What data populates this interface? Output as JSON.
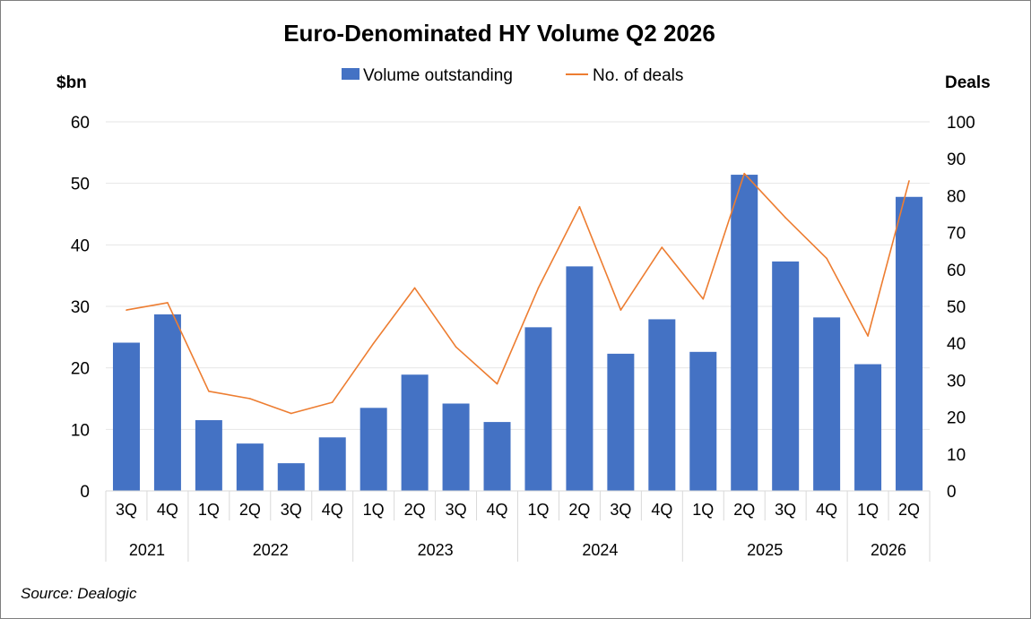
{
  "chart_data": {
    "type": "bar",
    "title": "Euro-Denominated HY Volume Q2 2026",
    "y_left_label": "$bn",
    "y_right_label": "Deals",
    "y_left_range": [
      0,
      60
    ],
    "y_left_ticks": [
      0,
      10,
      20,
      30,
      40,
      50,
      60
    ],
    "y_right_range": [
      0,
      100
    ],
    "y_right_ticks": [
      0,
      10,
      20,
      30,
      40,
      50,
      60,
      70,
      80,
      90,
      100
    ],
    "grid": true,
    "legend_position": "top",
    "categories": [
      "3Q",
      "4Q",
      "1Q",
      "2Q",
      "3Q",
      "4Q",
      "1Q",
      "2Q",
      "3Q",
      "4Q",
      "1Q",
      "2Q",
      "3Q",
      "4Q",
      "1Q",
      "2Q",
      "3Q",
      "4Q",
      "1Q",
      "2Q"
    ],
    "year_groups": [
      {
        "label": "2021",
        "count": 2
      },
      {
        "label": "2022",
        "count": 4
      },
      {
        "label": "2023",
        "count": 4
      },
      {
        "label": "2024",
        "count": 4
      },
      {
        "label": "2025",
        "count": 4
      },
      {
        "label": "2026",
        "count": 2
      }
    ],
    "series": [
      {
        "name": "Volume outstanding",
        "type": "bar",
        "axis": "left",
        "color": "#4472c4",
        "values": [
          24.1,
          28.7,
          11.5,
          7.7,
          4.5,
          8.7,
          13.5,
          18.9,
          14.2,
          11.2,
          26.6,
          36.5,
          22.3,
          27.9,
          22.6,
          51.4,
          37.3,
          28.2,
          20.6,
          47.8
        ]
      },
      {
        "name": "No. of deals",
        "type": "line",
        "axis": "right",
        "color": "#ed7d31",
        "values": [
          49,
          51,
          27,
          25,
          21,
          24,
          40,
          55,
          39,
          29,
          55,
          77,
          49,
          66,
          52,
          86,
          74,
          63,
          42,
          84
        ]
      }
    ],
    "source": "Source: Dealogic"
  }
}
